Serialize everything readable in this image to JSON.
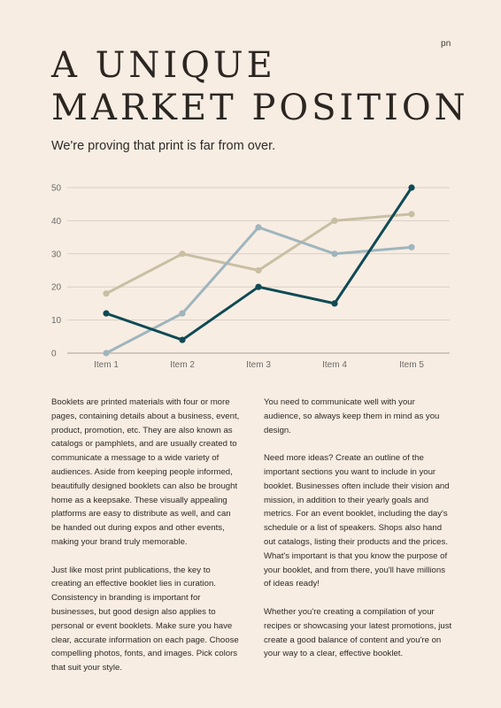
{
  "logo": "pn",
  "title": {
    "line1": "A UNIQUE",
    "line2": "MARKET POSITION"
  },
  "subtitle": "We're proving that print is far from over.",
  "chart_data": {
    "type": "line",
    "categories": [
      "Item 1",
      "Item 2",
      "Item 3",
      "Item 4",
      "Item 5"
    ],
    "y_ticks": [
      0,
      10,
      20,
      30,
      40,
      50
    ],
    "ylim": [
      0,
      50
    ],
    "grid": true,
    "series": [
      {
        "values": [
          12,
          4,
          20,
          15,
          50
        ],
        "color": "#0f4a55"
      },
      {
        "values": [
          0,
          12,
          38,
          30,
          32
        ],
        "color": "#9fb5bd"
      },
      {
        "values": [
          18,
          30,
          25,
          40,
          42
        ],
        "color": "#c8bfa3"
      }
    ]
  },
  "body": {
    "left": [
      "Booklets are printed materials with four or more pages, containing details about a business, event, product, promotion, etc. They are also known as catalogs or pamphlets, and are usually created to communicate a message to a wide variety of audiences. Aside from keeping people informed, beautifully designed booklets can also be brought home as a keepsake. These visually appealing platforms are easy to distribute as well, and can be handed out during expos and other events, making your brand truly memorable.",
      "Just like most print publications, the key to creating an effective booklet lies in curation. Consistency in branding is important for businesses, but good design also applies to personal or event booklets. Make sure you have clear, accurate information on each page. Choose compelling photos, fonts, and images. Pick colors that suit your style."
    ],
    "right": [
      "You need to communicate well with your audience, so always keep them in mind as you design.",
      "Need more ideas? Create an outline of the important sections you want to include in your booklet. Businesses often include their vision and mission, in addition to their yearly goals and metrics. For an event booklet, including the day's schedule or a list of speakers. Shops also hand out catalogs, listing their products and the prices. What's important is that you know the purpose of your booklet, and from there, you'll have millions of ideas ready!",
      "Whether you're creating a compilation of your recipes or showcasing your latest promotions, just create a good balance of content and you're on your way to a clear, effective booklet."
    ]
  }
}
